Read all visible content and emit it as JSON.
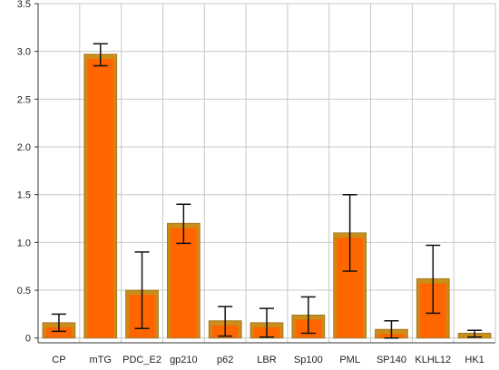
{
  "chart_data": {
    "type": "bar",
    "title": "",
    "xlabel": "",
    "ylabel": "",
    "categories": [
      "CP",
      "mTG",
      "PDC_E2",
      "gp210",
      "p62",
      "LBR",
      "Sp100",
      "PML",
      "SP140",
      "KLHL12",
      "HK1"
    ],
    "values": [
      0.16,
      2.97,
      0.5,
      1.2,
      0.18,
      0.16,
      0.24,
      1.1,
      0.09,
      0.62,
      0.05
    ],
    "error_low": [
      0.07,
      2.85,
      0.1,
      0.99,
      0.02,
      0.01,
      0.05,
      0.7,
      0.0,
      0.26,
      0.01
    ],
    "error_high": [
      0.25,
      3.08,
      0.9,
      1.4,
      0.33,
      0.31,
      0.43,
      1.5,
      0.18,
      0.97,
      0.08
    ],
    "ylim": [
      -0.05,
      3.5
    ],
    "yticks": [
      0,
      0.5,
      1.0,
      1.5,
      2.0,
      2.5,
      3.0,
      3.5
    ],
    "ytick_labels": [
      "0",
      "0.5",
      "1.0",
      "1.5",
      "2.0",
      "2.5",
      "3.0",
      "3.5"
    ],
    "grid": true,
    "colors": {
      "bar_fill": "#ff6600",
      "bar_top": "#c8901a",
      "bar_edge": "#9a7a2a",
      "error_bar": "#111111",
      "grid": "#c8c8c8",
      "axis": "#333333"
    }
  }
}
